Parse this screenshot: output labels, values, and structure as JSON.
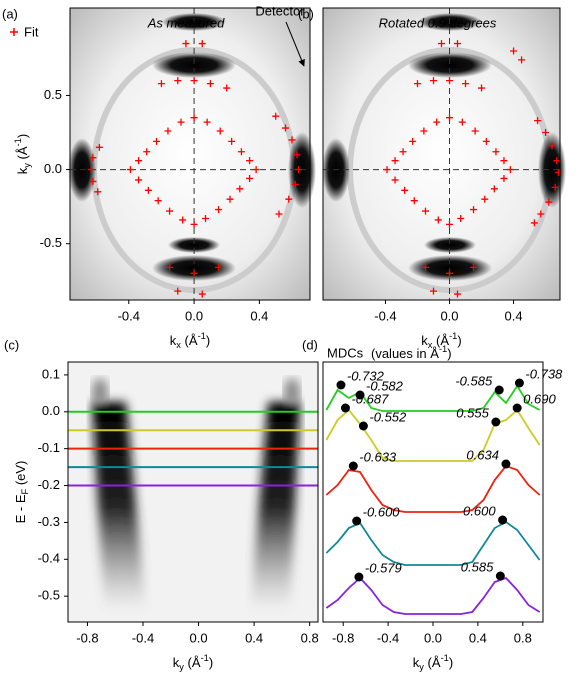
{
  "chart_data": [
    {
      "type": "scatter",
      "panel_label": "(a)",
      "title": "As measured",
      "annotation": "Detector",
      "legend": "upper left",
      "xlabel": {
        "main": "k",
        "sub": "x",
        "unit": " (Å",
        "sup": "-1",
        "end": ")"
      },
      "ylabel": {
        "main": "k",
        "sub": "y",
        "unit": " (Å",
        "sup": "-1",
        "end": ")"
      },
      "xlim": [
        -0.76,
        0.71
      ],
      "ylim": [
        -0.88,
        1.09
      ],
      "xticks": [
        -0.4,
        {
          "value": 0,
          "label": "0.0"
        },
        0.4
      ],
      "yticks": [
        -0.5,
        {
          "value": 0,
          "label": "0.0"
        },
        0.5
      ],
      "zero_lines": true,
      "series": [
        {
          "name": "Fit",
          "color": "#ff0000",
          "x": [
            0.38,
            0.34,
            0.29,
            0.23,
            0.16,
            0.08,
            0,
            -0.08,
            -0.16,
            -0.23,
            -0.29,
            -0.34,
            -0.39,
            -0.34,
            -0.28,
            -0.22,
            -0.15,
            -0.07,
            0,
            0.07,
            0.15,
            0.22,
            0.28,
            0.34,
            -0.58,
            -0.62,
            -0.63,
            -0.62,
            -0.59,
            0.5,
            0.56,
            0.6,
            0.63,
            0.64,
            0.62,
            0.58,
            0.52,
            -0.2,
            -0.1,
            0,
            0.1,
            0.2,
            -0.05,
            0.05,
            -0.15,
            0,
            0.15,
            -0.1,
            0.05
          ],
          "y": [
            0,
            0.06,
            0.12,
            0.19,
            0.26,
            0.32,
            0.35,
            0.32,
            0.26,
            0.19,
            0.12,
            0.06,
            0,
            -0.07,
            -0.14,
            -0.21,
            -0.28,
            -0.34,
            -0.37,
            -0.33,
            -0.27,
            -0.2,
            -0.13,
            -0.06,
            0.15,
            0.08,
            0,
            -0.08,
            -0.15,
            0.36,
            0.28,
            0.2,
            0.1,
            0,
            -0.1,
            -0.2,
            -0.3,
            0.58,
            0.6,
            0.6,
            0.58,
            0.55,
            0.85,
            0.85,
            -0.66,
            -0.7,
            -0.66,
            -0.82,
            -0.84
          ]
        }
      ]
    },
    {
      "type": "scatter",
      "panel_label": "(b)",
      "title": "Rotated 0.9 degrees",
      "xlabel": {
        "main": "k",
        "sub": "x",
        "unit": " (Å",
        "sup": "-1",
        "end": ")"
      },
      "xlim": [
        -0.79,
        0.69
      ],
      "ylim": [
        -0.88,
        1.09
      ],
      "xticks": [
        -0.4,
        {
          "value": 0,
          "label": "0.0"
        },
        0.4
      ],
      "zero_lines": true,
      "series": [
        {
          "color": "#ff0000",
          "x": [
            0.38,
            0.34,
            0.29,
            0.23,
            0.16,
            0.08,
            0,
            -0.08,
            -0.16,
            -0.23,
            -0.29,
            -0.34,
            -0.39,
            -0.34,
            -0.28,
            -0.22,
            -0.15,
            -0.07,
            0,
            0.07,
            0.15,
            0.22,
            0.28,
            0.34,
            0.55,
            0.6,
            0.64,
            0.67,
            0.68,
            0.66,
            0.62,
            0.57,
            0.53,
            -0.2,
            -0.1,
            0,
            0.1,
            0.2,
            -0.05,
            0.05,
            -0.15,
            0,
            0.15,
            -0.1,
            0.05,
            0.4,
            0.45
          ],
          "y": [
            0,
            0.06,
            0.12,
            0.19,
            0.26,
            0.32,
            0.35,
            0.32,
            0.26,
            0.19,
            0.12,
            0.06,
            0,
            -0.07,
            -0.14,
            -0.21,
            -0.28,
            -0.34,
            -0.37,
            -0.33,
            -0.27,
            -0.2,
            -0.13,
            -0.06,
            0.33,
            0.25,
            0.16,
            0.06,
            -0.02,
            -0.12,
            -0.22,
            -0.3,
            -0.36,
            0.58,
            0.6,
            0.6,
            0.58,
            0.55,
            0.85,
            0.85,
            -0.66,
            -0.7,
            -0.66,
            -0.82,
            -0.84,
            0.8,
            0.74
          ]
        }
      ]
    },
    {
      "type": "image",
      "panel_label": "(c)",
      "xlabel": {
        "main": "k",
        "sub": "y",
        "unit": " (Å",
        "sup": "-1",
        "end": ")"
      },
      "ylabel": {
        "main": "E - E",
        "sub": "F",
        "unit": " (eV)"
      },
      "xlim": [
        -0.94,
        0.86
      ],
      "ylim": [
        -0.57,
        0.135
      ],
      "xticks": [
        -0.8,
        -0.4,
        {
          "value": 0,
          "label": "0.0"
        },
        0.4,
        0.8
      ],
      "yticks": [
        0.1,
        {
          "value": 0,
          "label": "0.0"
        },
        -0.1,
        -0.2,
        -0.3,
        -0.4,
        -0.5
      ],
      "lines": [
        {
          "value": 0,
          "color": "#22cc22"
        },
        {
          "value": -0.05,
          "color": "#cccc22"
        },
        {
          "value": -0.1,
          "color": "#ee2211"
        },
        {
          "value": -0.15,
          "color": "#118899"
        },
        {
          "value": -0.2,
          "color": "#8822dd"
        }
      ]
    },
    {
      "type": "line",
      "panel_label": "(d)",
      "title": "MDCs",
      "subtitle": {
        "main": "(values in Å",
        "sup": "-1",
        "end": ")"
      },
      "xlabel": {
        "main": "k",
        "sub": "y",
        "unit": " (Å",
        "sup": "-1",
        "end": ")"
      },
      "xlim": [
        -0.98,
        0.98
      ],
      "ylim": [
        0,
        260
      ],
      "xticks": [
        -0.8,
        -0.4,
        {
          "value": 0,
          "label": "0.0"
        },
        0.4,
        0.8
      ],
      "x": [
        -0.95,
        -0.85,
        -0.75,
        -0.65,
        -0.55,
        -0.45,
        -0.35,
        -0.25,
        -0.15,
        -0.05,
        0.05,
        0.15,
        0.25,
        0.35,
        0.45,
        0.55,
        0.65,
        0.75,
        0.85,
        0.95
      ],
      "series": [
        {
          "color": "#22cc22",
          "values": [
            212,
            232,
            224,
            230,
            214,
            211,
            211,
            211,
            211,
            211,
            211,
            211,
            211,
            211,
            214,
            230,
            219,
            236,
            218,
            212
          ],
          "peaks_x": [
            -0.82,
            -0.65,
            0.59,
            0.77
          ],
          "peaks_y": [
            237,
            227,
            232,
            239
          ],
          "peak_labels": [
            "-0.732",
            "-0.582",
            "-0.585",
            "-0.738"
          ]
        },
        {
          "color": "#cccc22",
          "values": [
            182,
            202,
            212,
            198,
            182,
            164,
            161,
            161,
            161,
            161,
            161,
            161,
            161,
            161,
            172,
            198,
            202,
            212,
            194,
            177
          ],
          "peaks_x": [
            -0.78,
            -0.62,
            0.56,
            0.75
          ],
          "peaks_y": [
            214,
            196,
            200,
            214
          ],
          "peak_labels": [
            "-0.687",
            "-0.552",
            "0.555",
            "0.690"
          ]
        },
        {
          "color": "#ee2211",
          "values": [
            127,
            137,
            152,
            150,
            132,
            117,
            112,
            110,
            110,
            110,
            110,
            110,
            110,
            112,
            122,
            142,
            156,
            152,
            137,
            127
          ],
          "peaks_x": [
            -0.71,
            0.65
          ],
          "peaks_y": [
            156,
            158
          ],
          "peak_labels": [
            "-0.633",
            "0.634"
          ]
        },
        {
          "color": "#118899",
          "values": [
            69,
            80,
            94,
            99,
            82,
            67,
            60,
            57,
            57,
            57,
            57,
            57,
            57,
            60,
            77,
            94,
            100,
            92,
            77,
            62
          ],
          "peaks_x": [
            -0.68,
            0.62
          ],
          "peaks_y": [
            101,
            102
          ],
          "peak_labels": [
            "-0.600",
            "0.600"
          ]
        },
        {
          "color": "#8822dd",
          "values": [
            14,
            22,
            34,
            44,
            32,
            17,
            10,
            8,
            8,
            8,
            8,
            8,
            8,
            10,
            24,
            40,
            44,
            32,
            17,
            10
          ],
          "peaks_x": [
            -0.66,
            0.6
          ],
          "peaks_y": [
            45,
            46
          ],
          "peak_labels": [
            "-0.579",
            "0.585"
          ]
        }
      ]
    }
  ]
}
